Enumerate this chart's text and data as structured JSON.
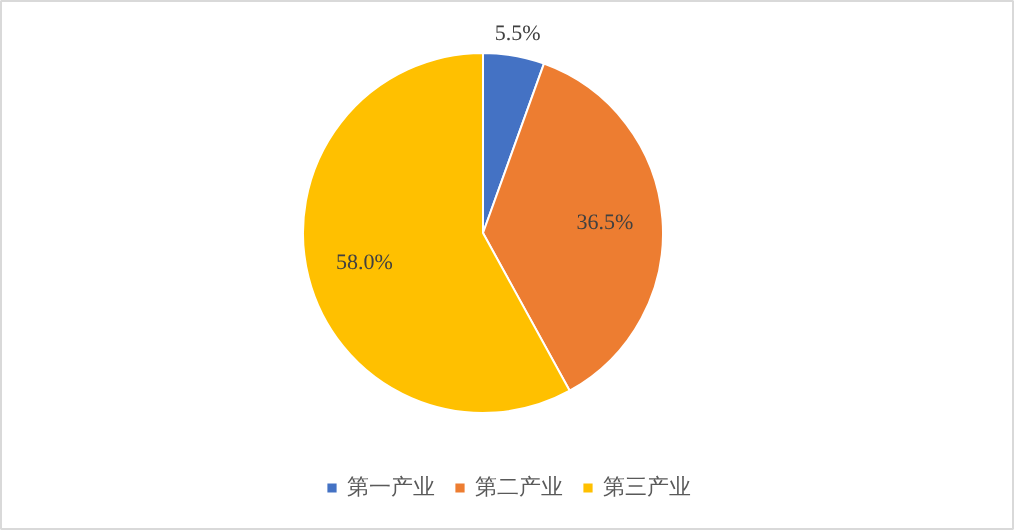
{
  "chart_data": {
    "type": "pie",
    "categories": [
      "第一产业",
      "第二产业",
      "第三产业"
    ],
    "values": [
      5.5,
      36.5,
      58.0
    ],
    "colors": [
      "#4472c4",
      "#ed7d31",
      "#ffc000"
    ],
    "value_labels": [
      "5.5%",
      "36.5%",
      "58.0%"
    ],
    "legend": "bottom"
  }
}
